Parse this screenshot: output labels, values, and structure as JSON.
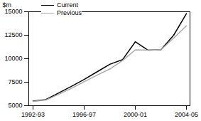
{
  "chart_data": {
    "type": "line",
    "y_label": "$m",
    "categories": [
      "1992-93",
      null,
      null,
      null,
      "1996-97",
      null,
      null,
      null,
      "2000-01",
      null,
      null,
      null,
      "2004-05"
    ],
    "series": [
      {
        "name": "Current",
        "color": "#000000",
        "values": [
          5500,
          5650,
          6350,
          7050,
          7800,
          8600,
          9400,
          9900,
          11800,
          10900,
          10950,
          12500,
          14800
        ]
      },
      {
        "name": "Previous",
        "color": "#aaaaaa",
        "values": [
          5450,
          5600,
          6200,
          6850,
          7550,
          8250,
          8900,
          9800,
          10950,
          10900,
          10950,
          12200,
          13500
        ]
      }
    ],
    "ylim": [
      5000,
      15000
    ],
    "yticks": [
      5000,
      7500,
      10000,
      12500,
      15000
    ],
    "legend": "top-left",
    "grid": false
  }
}
